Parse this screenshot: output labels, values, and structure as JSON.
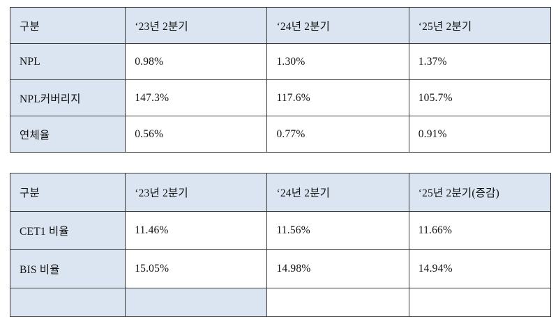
{
  "table1": {
    "headers": [
      "구분",
      "‘23년 2분기",
      "‘24년 2분기",
      "‘25년 2분기"
    ],
    "rows": [
      {
        "label": "NPL",
        "values": [
          "0.98%",
          "1.30%",
          "1.37%"
        ]
      },
      {
        "label": "NPL커버리지",
        "values": [
          "147.3%",
          "117.6%",
          "105.7%"
        ]
      },
      {
        "label": "연체율",
        "values": [
          "0.56%",
          "0.77%",
          "0.91%"
        ]
      }
    ]
  },
  "table2": {
    "headers": [
      "구분",
      "‘23년 2분기",
      "‘24년 2분기",
      "‘25년 2분기(증감)"
    ],
    "rows": [
      {
        "label": "CET1 비율",
        "values": [
          "11.46%",
          "11.56%",
          "11.66%"
        ]
      },
      {
        "label": "BIS 비율",
        "values": [
          "15.05%",
          "14.98%",
          "14.94%"
        ]
      }
    ]
  },
  "colors": {
    "header_bg": "#dbe5f1",
    "border": "#3a3a3a"
  }
}
